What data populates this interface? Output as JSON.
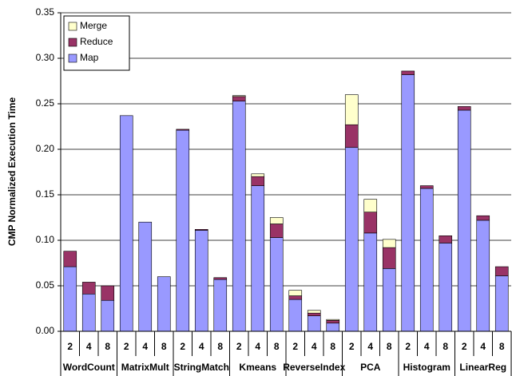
{
  "chart_data": {
    "type": "stacked_bar",
    "y_label": "CMP Normalized Execution Time",
    "categories": [
      "2",
      "4",
      "8",
      "2",
      "4",
      "8",
      "2",
      "4",
      "8",
      "2",
      "4",
      "8",
      "2",
      "4",
      "8",
      "2",
      "4",
      "8",
      "2",
      "4",
      "8",
      "2",
      "4",
      "8"
    ],
    "groups": [
      "WordCount",
      "MatrixMult",
      "StringMatch",
      "Kmeans",
      "ReverseIndex",
      "PCA",
      "Histogram",
      "LinearReg"
    ],
    "series": [
      {
        "name": "Map",
        "color": "#9999ff",
        "values": [
          0.071,
          0.041,
          0.034,
          0.237,
          0.12,
          0.06,
          0.221,
          0.111,
          0.057,
          0.253,
          0.16,
          0.103,
          0.035,
          0.017,
          0.009,
          0.202,
          0.108,
          0.069,
          0.282,
          0.157,
          0.097,
          0.243,
          0.122,
          0.061
        ]
      },
      {
        "name": "Reduce",
        "color": "#993366",
        "values": [
          0.017,
          0.013,
          0.016,
          0,
          0,
          0,
          0.001,
          0.001,
          0.002,
          0.005,
          0.01,
          0.015,
          0.004,
          0.003,
          0.003,
          0.025,
          0.023,
          0.023,
          0.004,
          0.003,
          0.008,
          0.004,
          0.005,
          0.01
        ]
      },
      {
        "name": "Merge",
        "color": "#ffffcc",
        "values": [
          0,
          0,
          0,
          0,
          0,
          0,
          0,
          0,
          0,
          0.001,
          0.003,
          0.007,
          0.006,
          0.003,
          0.001,
          0.033,
          0.014,
          0.009,
          0,
          0,
          0,
          0,
          0,
          0
        ]
      }
    ],
    "ylim": [
      0,
      0.35
    ],
    "yticks": [
      {
        "value": 0,
        "label": "0.00"
      },
      {
        "value": 0.05,
        "label": "0.05"
      },
      {
        "value": 0.1,
        "label": "0.10"
      },
      {
        "value": 0.15,
        "label": "0.15"
      },
      {
        "value": 0.2,
        "label": "0.20"
      },
      {
        "value": 0.25,
        "label": "0.25"
      },
      {
        "value": 0.3,
        "label": "0.30"
      },
      {
        "value": 0.35,
        "label": "0.35"
      }
    ],
    "grid": true,
    "legend": "top-left"
  }
}
